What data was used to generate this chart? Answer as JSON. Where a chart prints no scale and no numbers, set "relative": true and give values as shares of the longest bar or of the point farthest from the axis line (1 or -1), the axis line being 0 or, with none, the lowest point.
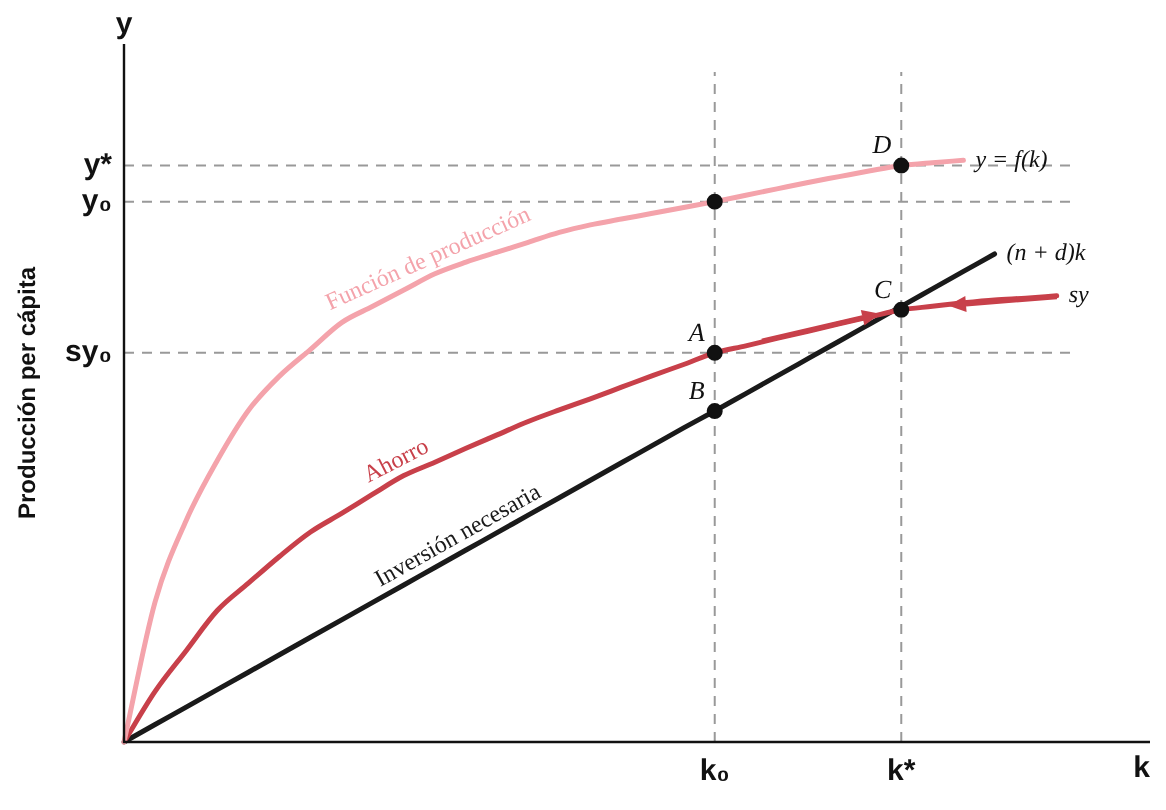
{
  "chart_data": {
    "type": "line",
    "relative": true,
    "ylabel": "Producción per cápita",
    "xlabel": "k",
    "grid": false,
    "legend": false,
    "marker": "none",
    "line_style": "solid",
    "categories": [
      null,
      null,
      null,
      null,
      null,
      null,
      null,
      null,
      null,
      null,
      null,
      null,
      null,
      null,
      null,
      null,
      null,
      null,
      null,
      "k₀",
      null,
      null,
      null,
      null,
      null,
      "k*",
      null,
      null,
      null,
      null,
      null,
      null,
      null,
      null
    ],
    "series": [
      {
        "name": "Función de producción",
        "color": "#f4a3ab",
        "values": [
          0,
          0.241,
          0.381,
          0.484,
          0.57,
          0.629,
          0.675,
          0.721,
          0.749,
          0.777,
          0.805,
          0.825,
          0.842,
          0.859,
          0.876,
          0.889,
          0.899,
          0.909,
          0.919,
          0.929,
          0.94,
          0.951,
          0.962,
          0.972,
          0.982,
          0.991,
          0.996,
          1,
          null,
          null,
          null,
          null,
          null,
          null
        ]
      },
      {
        "name": "Ahorro",
        "color": "#c8404a",
        "values": [
          0,
          0.087,
          0.157,
          0.226,
          0.273,
          0.319,
          0.361,
          0.393,
          0.426,
          0.458,
          0.481,
          0.505,
          0.528,
          0.551,
          0.571,
          0.59,
          0.61,
          0.63,
          0.649,
          0.669,
          0.681,
          0.694,
          0.706,
          0.719,
          0.731,
          0.743,
          0.749,
          0.755,
          0.76,
          0.763,
          0.767,
          null,
          null,
          null
        ]
      },
      {
        "name": "Inversión necesaria",
        "color": "#1a1a1a",
        "values": [
          0,
          0.03,
          0.06,
          0.09,
          0.12,
          0.15,
          0.18,
          0.21,
          0.24,
          0.27,
          0.3,
          0.33,
          0.36,
          0.39,
          0.42,
          0.45,
          0.48,
          0.51,
          0.54,
          0.569,
          0.599,
          0.629,
          0.659,
          0.689,
          0.719,
          0.749,
          0.779,
          0.809,
          0.839,
          null,
          null,
          null,
          null,
          null
        ]
      },
      {
        "type": "scatter",
        "marker": "circle",
        "color": "#111111",
        "x": [
          "k₀",
          "k₀",
          "k₀",
          "k*",
          "k*"
        ],
        "values": [
          0.929,
          0.669,
          0.569,
          0.743,
          0.991
        ]
      }
    ],
    "ref_lines": [
      {
        "axis": "y",
        "value": 0.991,
        "label": "y*",
        "color": "#999999",
        "line_style": "dashed"
      },
      {
        "axis": "y",
        "value": 0.929,
        "label": "y₀",
        "color": "#999999",
        "line_style": "dashed"
      },
      {
        "axis": "y",
        "value": 0.669,
        "label": "sy₀",
        "color": "#999999",
        "line_style": "dashed"
      },
      {
        "axis": "x",
        "value": "k₀",
        "color": "#999999",
        "line_style": "dashed"
      },
      {
        "axis": "x",
        "value": "k*",
        "color": "#999999",
        "line_style": "dashed"
      }
    ],
    "annotations": [
      "y",
      {
        "text": "A",
        "x": "k₀",
        "y": 0.669
      },
      {
        "text": "B",
        "x": "k₀",
        "y": 0.569
      },
      {
        "text": "C",
        "x": "k*",
        "y": 0.743
      },
      {
        "text": "D",
        "x": "k*",
        "y": 0.991
      },
      "y = f(k)",
      "sy",
      "(n + d)k"
    ]
  }
}
